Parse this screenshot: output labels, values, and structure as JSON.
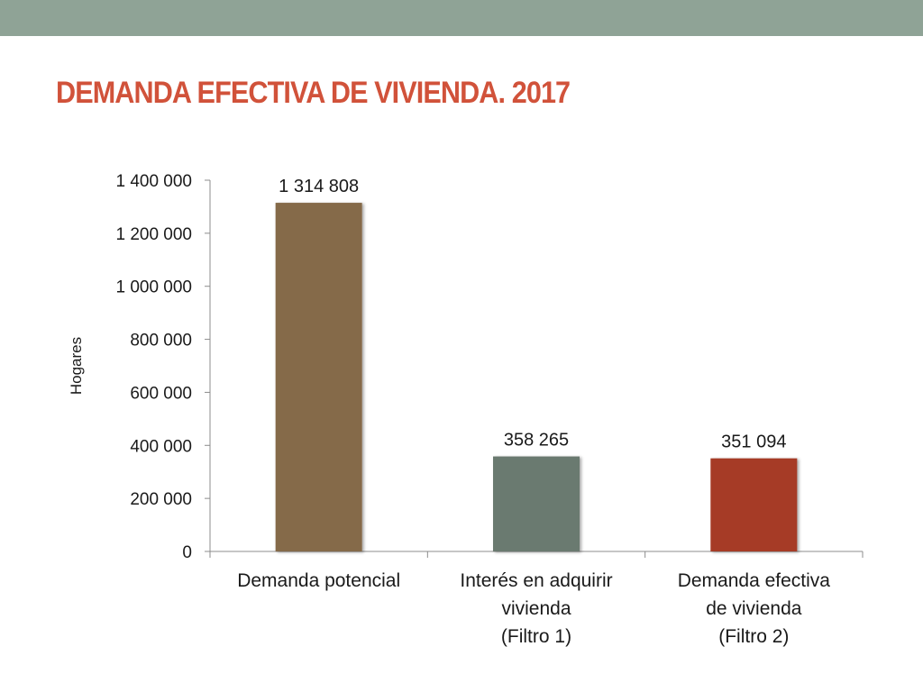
{
  "slide": {
    "title": "DEMANDA EFECTIVA DE VIVIENDA. 2017",
    "band_color": "#8fa396",
    "title_color": "#d1523a"
  },
  "chart_data": {
    "type": "bar",
    "title": "",
    "ylabel": "Hogares",
    "xlabel": "",
    "ylim": [
      0,
      1400000
    ],
    "yticks": [
      0,
      200000,
      400000,
      600000,
      800000,
      1000000,
      1200000,
      1400000
    ],
    "ytick_labels": [
      "0",
      "200 000",
      "400 000",
      "600 000",
      "800 000",
      "1 000 000",
      "1 200 000",
      "1 400 000"
    ],
    "categories": [
      [
        "Demanda potencial"
      ],
      [
        "Interés en adquirir",
        "vivienda",
        "(Filtro 1)"
      ],
      [
        "Demanda efectiva",
        "de vivienda",
        "(Filtro 2)"
      ]
    ],
    "values": [
      1314808,
      358265,
      351094
    ],
    "value_labels": [
      "1 314 808",
      "358 265",
      "351 094"
    ],
    "colors": [
      "#856b4a",
      "#6b7a6f",
      "#a63a26"
    ],
    "grid": false
  }
}
